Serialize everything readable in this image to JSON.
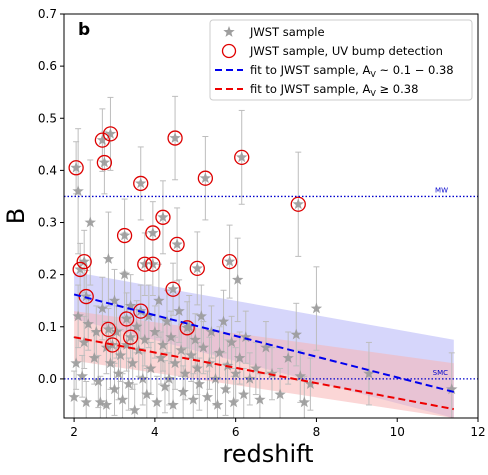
{
  "chart_data": {
    "type": "scatter",
    "panel_label": "b",
    "xlabel": "redshift",
    "ylabel": "B",
    "xlim": [
      1.75,
      12
    ],
    "ylim": [
      -0.075,
      0.7
    ],
    "xticks": [
      2,
      4,
      6,
      8,
      10,
      12
    ],
    "yticks": [
      0.0,
      0.1,
      0.2,
      0.3,
      0.4,
      0.5,
      0.6,
      0.7
    ],
    "xtick_labels": [
      "2",
      "4",
      "6",
      "8",
      "10",
      "12"
    ],
    "ytick_labels": [
      "0.0",
      "0.1",
      "0.2",
      "0.3",
      "0.4",
      "0.5",
      "0.6",
      "0.7"
    ],
    "legend_position": "top-right",
    "legend": [
      {
        "label": "JWST sample",
        "marker": "star",
        "color": "#9e9e9e"
      },
      {
        "label": "JWST sample, UV bump detection",
        "marker": "open-circle",
        "color": "#e00000"
      },
      {
        "label": "fit to JWST sample, A",
        "label_sub": "V",
        "label_tail": " ~ 0.1 − 0.38",
        "marker": "dashed-line",
        "color": "#0000ee"
      },
      {
        "label": "fit to JWST sample, A",
        "label_sub": "V",
        "label_tail": " ≥ 0.38",
        "marker": "dashed-line",
        "color": "#ee0000"
      }
    ],
    "reference_lines": [
      {
        "name": "MW",
        "y": 0.35,
        "color": "#0000cc"
      },
      {
        "name": "SMC",
        "y": 0.0,
        "color": "#0000cc"
      }
    ],
    "fits": [
      {
        "color": "#0000ee",
        "band_color": "#b4b4f8",
        "x": [
          2.0,
          11.4
        ],
        "y": [
          0.162,
          -0.025
        ],
        "band_lower": [
          0.115,
          -0.075
        ],
        "band_upper": [
          0.205,
          0.075
        ]
      },
      {
        "color": "#ee0000",
        "band_color": "#f8b4b4",
        "x": [
          2.0,
          11.4
        ],
        "y": [
          0.08,
          -0.058
        ],
        "band_lower": [
          0.035,
          -0.075
        ],
        "band_upper": [
          0.13,
          0.03
        ]
      }
    ],
    "bump_detections": [
      {
        "x": 2.05,
        "y": 0.405,
        "err": 0.05
      },
      {
        "x": 2.15,
        "y": 0.21,
        "err": 0.05
      },
      {
        "x": 2.25,
        "y": 0.225,
        "err": 0.06
      },
      {
        "x": 2.3,
        "y": 0.158,
        "err": 0.05
      },
      {
        "x": 2.7,
        "y": 0.458,
        "err": 0.06
      },
      {
        "x": 2.75,
        "y": 0.415,
        "err": 0.06
      },
      {
        "x": 2.85,
        "y": 0.095,
        "err": 0.04
      },
      {
        "x": 2.9,
        "y": 0.47,
        "err": 0.07
      },
      {
        "x": 2.95,
        "y": 0.065,
        "err": 0.04
      },
      {
        "x": 3.25,
        "y": 0.275,
        "err": 0.07
      },
      {
        "x": 3.3,
        "y": 0.115,
        "err": 0.05
      },
      {
        "x": 3.4,
        "y": 0.08,
        "err": 0.04
      },
      {
        "x": 3.65,
        "y": 0.13,
        "err": 0.05
      },
      {
        "x": 3.65,
        "y": 0.375,
        "err": 0.07
      },
      {
        "x": 3.75,
        "y": 0.22,
        "err": 0.06
      },
      {
        "x": 3.95,
        "y": 0.28,
        "err": 0.06
      },
      {
        "x": 3.95,
        "y": 0.22,
        "err": 0.06
      },
      {
        "x": 4.2,
        "y": 0.31,
        "err": 0.07
      },
      {
        "x": 4.45,
        "y": 0.172,
        "err": 0.05
      },
      {
        "x": 4.5,
        "y": 0.462,
        "err": 0.08
      },
      {
        "x": 4.55,
        "y": 0.258,
        "err": 0.07
      },
      {
        "x": 4.8,
        "y": 0.098,
        "err": 0.05
      },
      {
        "x": 5.05,
        "y": 0.212,
        "err": 0.07
      },
      {
        "x": 5.25,
        "y": 0.385,
        "err": 0.08
      },
      {
        "x": 5.85,
        "y": 0.225,
        "err": 0.07
      },
      {
        "x": 6.15,
        "y": 0.425,
        "err": 0.09
      },
      {
        "x": 7.55,
        "y": 0.335,
        "err": 0.1
      }
    ],
    "jwst_sample": [
      {
        "x": 2.0,
        "y": -0.035,
        "err": 0.05
      },
      {
        "x": 2.05,
        "y": 0.03,
        "err": 0.05
      },
      {
        "x": 2.1,
        "y": 0.12,
        "err": 0.06
      },
      {
        "x": 2.1,
        "y": 0.36,
        "err": 0.12
      },
      {
        "x": 2.2,
        "y": 0.005,
        "err": 0.04
      },
      {
        "x": 2.25,
        "y": 0.07,
        "err": 0.05
      },
      {
        "x": 2.3,
        "y": -0.045,
        "err": 0.04
      },
      {
        "x": 2.35,
        "y": 0.105,
        "err": 0.05
      },
      {
        "x": 2.4,
        "y": 0.3,
        "err": 0.12
      },
      {
        "x": 2.5,
        "y": 0.04,
        "err": 0.05
      },
      {
        "x": 2.55,
        "y": 0.09,
        "err": 0.05
      },
      {
        "x": 2.6,
        "y": -0.005,
        "err": 0.05
      },
      {
        "x": 2.65,
        "y": -0.045,
        "err": 0.05
      },
      {
        "x": 2.7,
        "y": 0.135,
        "err": 0.06
      },
      {
        "x": 2.8,
        "y": 0.06,
        "err": 0.05
      },
      {
        "x": 2.8,
        "y": -0.05,
        "err": 0.05
      },
      {
        "x": 2.85,
        "y": 0.23,
        "err": 0.09
      },
      {
        "x": 2.9,
        "y": 0.03,
        "err": 0.05
      },
      {
        "x": 3.0,
        "y": -0.02,
        "err": 0.05
      },
      {
        "x": 3.0,
        "y": 0.15,
        "err": 0.06
      },
      {
        "x": 3.05,
        "y": 0.09,
        "err": 0.05
      },
      {
        "x": 3.1,
        "y": 0.01,
        "err": 0.05
      },
      {
        "x": 3.15,
        "y": 0.045,
        "err": 0.05
      },
      {
        "x": 3.2,
        "y": -0.04,
        "err": 0.05
      },
      {
        "x": 3.25,
        "y": 0.2,
        "err": 0.08
      },
      {
        "x": 3.3,
        "y": 0.065,
        "err": 0.05
      },
      {
        "x": 3.35,
        "y": -0.01,
        "err": 0.05
      },
      {
        "x": 3.4,
        "y": 0.14,
        "err": 0.06
      },
      {
        "x": 3.45,
        "y": 0.03,
        "err": 0.05
      },
      {
        "x": 3.5,
        "y": -0.06,
        "err": 0.05
      },
      {
        "x": 3.55,
        "y": 0.1,
        "err": 0.05
      },
      {
        "x": 3.6,
        "y": 0.055,
        "err": 0.05
      },
      {
        "x": 3.7,
        "y": 0.0,
        "err": 0.05
      },
      {
        "x": 3.75,
        "y": 0.075,
        "err": 0.05
      },
      {
        "x": 3.8,
        "y": -0.03,
        "err": 0.05
      },
      {
        "x": 3.85,
        "y": 0.12,
        "err": 0.06
      },
      {
        "x": 3.9,
        "y": 0.02,
        "err": 0.05
      },
      {
        "x": 4.0,
        "y": 0.09,
        "err": 0.05
      },
      {
        "x": 4.05,
        "y": -0.045,
        "err": 0.05
      },
      {
        "x": 4.1,
        "y": 0.15,
        "err": 0.07
      },
      {
        "x": 4.15,
        "y": 0.04,
        "err": 0.05
      },
      {
        "x": 4.2,
        "y": 0.065,
        "err": 0.05
      },
      {
        "x": 4.25,
        "y": -0.015,
        "err": 0.05
      },
      {
        "x": 4.3,
        "y": 0.11,
        "err": 0.06
      },
      {
        "x": 4.35,
        "y": 0.0,
        "err": 0.05
      },
      {
        "x": 4.4,
        "y": 0.08,
        "err": 0.05
      },
      {
        "x": 4.45,
        "y": -0.05,
        "err": 0.05
      },
      {
        "x": 4.5,
        "y": 0.03,
        "err": 0.05
      },
      {
        "x": 4.6,
        "y": 0.13,
        "err": 0.06
      },
      {
        "x": 4.65,
        "y": 0.055,
        "err": 0.05
      },
      {
        "x": 4.7,
        "y": -0.025,
        "err": 0.05
      },
      {
        "x": 4.75,
        "y": 0.01,
        "err": 0.05
      },
      {
        "x": 4.85,
        "y": 0.1,
        "err": 0.06
      },
      {
        "x": 4.9,
        "y": 0.045,
        "err": 0.05
      },
      {
        "x": 4.95,
        "y": -0.04,
        "err": 0.05
      },
      {
        "x": 5.0,
        "y": 0.075,
        "err": 0.05
      },
      {
        "x": 5.05,
        "y": 0.02,
        "err": 0.05
      },
      {
        "x": 5.1,
        "y": -0.01,
        "err": 0.05
      },
      {
        "x": 5.15,
        "y": 0.12,
        "err": 0.06
      },
      {
        "x": 5.2,
        "y": 0.06,
        "err": 0.05
      },
      {
        "x": 5.3,
        "y": -0.035,
        "err": 0.05
      },
      {
        "x": 5.35,
        "y": 0.03,
        "err": 0.05
      },
      {
        "x": 5.4,
        "y": 0.09,
        "err": 0.05
      },
      {
        "x": 5.5,
        "y": 0.0,
        "err": 0.05
      },
      {
        "x": 5.55,
        "y": -0.05,
        "err": 0.05
      },
      {
        "x": 5.6,
        "y": 0.05,
        "err": 0.05
      },
      {
        "x": 5.7,
        "y": 0.11,
        "err": 0.06
      },
      {
        "x": 5.75,
        "y": -0.02,
        "err": 0.05
      },
      {
        "x": 5.8,
        "y": 0.025,
        "err": 0.05
      },
      {
        "x": 5.9,
        "y": 0.07,
        "err": 0.05
      },
      {
        "x": 5.95,
        "y": -0.045,
        "err": 0.05
      },
      {
        "x": 6.0,
        "y": 0.01,
        "err": 0.05
      },
      {
        "x": 6.05,
        "y": 0.19,
        "err": 0.08
      },
      {
        "x": 6.1,
        "y": 0.04,
        "err": 0.05
      },
      {
        "x": 6.2,
        "y": -0.03,
        "err": 0.05
      },
      {
        "x": 6.25,
        "y": 0.08,
        "err": 0.05
      },
      {
        "x": 6.35,
        "y": 0.0,
        "err": 0.05
      },
      {
        "x": 6.5,
        "y": 0.02,
        "err": 0.05
      },
      {
        "x": 6.6,
        "y": -0.04,
        "err": 0.05
      },
      {
        "x": 6.75,
        "y": 0.06,
        "err": 0.05
      },
      {
        "x": 6.9,
        "y": 0.01,
        "err": 0.05
      },
      {
        "x": 7.1,
        "y": -0.03,
        "err": 0.05
      },
      {
        "x": 7.3,
        "y": 0.04,
        "err": 0.05
      },
      {
        "x": 7.5,
        "y": 0.085,
        "err": 0.06
      },
      {
        "x": 7.6,
        "y": 0.005,
        "err": 0.05
      },
      {
        "x": 7.7,
        "y": -0.045,
        "err": 0.05
      },
      {
        "x": 7.85,
        "y": -0.01,
        "err": 0.05
      },
      {
        "x": 8.0,
        "y": 0.135,
        "err": 0.08
      },
      {
        "x": 9.3,
        "y": 0.01,
        "err": 0.06
      },
      {
        "x": 11.35,
        "y": -0.02,
        "err": 0.07
      }
    ]
  }
}
